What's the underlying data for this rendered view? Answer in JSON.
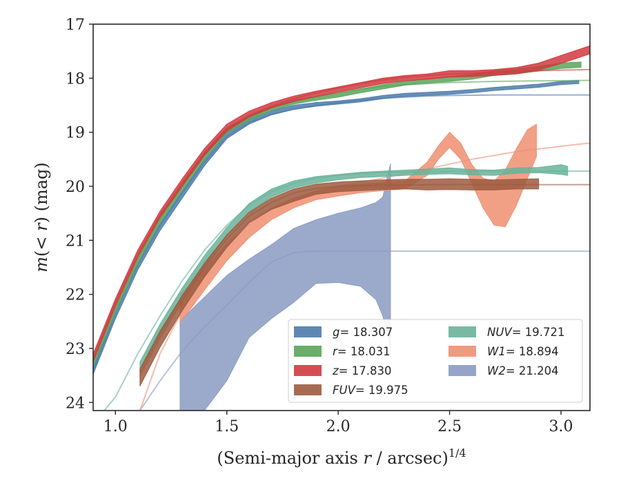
{
  "chart_data": {
    "type": "line",
    "xlabel_main": "(Semi-major axis ",
    "xlabel_var": "r",
    "xlabel_tail": " / arcsec)",
    "xlabel_sup": "1/4",
    "ylabel_pre": "m",
    "ylabel_mid": "(< ",
    "ylabel_var": "r",
    "ylabel_post": ") (mag)",
    "xlim": [
      0.9,
      3.13
    ],
    "ylim": [
      24.15,
      17.0
    ],
    "y_inverted": true,
    "xticks": [
      1.0,
      1.5,
      2.0,
      2.5,
      3.0
    ],
    "xtick_labels": [
      "1.0",
      "1.5",
      "2.0",
      "2.5",
      "3.0"
    ],
    "yticks": [
      17,
      18,
      19,
      20,
      21,
      22,
      23,
      24
    ],
    "ytick_labels": [
      "17",
      "18",
      "19",
      "20",
      "21",
      "22",
      "23",
      "24"
    ],
    "legend_position": "lower-right",
    "series": [
      {
        "band": "g",
        "label": "= 18.307",
        "color": "#4c7bab",
        "band_x": [
          0.9,
          1.0,
          1.1,
          1.2,
          1.3,
          1.4,
          1.5,
          1.6,
          1.7,
          1.8,
          1.9,
          2.0,
          2.1,
          2.2,
          2.3,
          2.4,
          2.5,
          2.6,
          2.7,
          2.8,
          2.9,
          3.0,
          3.08
        ],
        "band_lo": [
          23.48,
          22.45,
          21.55,
          20.82,
          20.22,
          19.62,
          19.12,
          18.85,
          18.68,
          18.58,
          18.52,
          18.48,
          18.44,
          18.38,
          18.34,
          18.32,
          18.3,
          18.27,
          18.23,
          18.2,
          18.17,
          18.12,
          18.1
        ],
        "band_hi": [
          23.36,
          22.33,
          21.43,
          20.7,
          20.1,
          19.5,
          19.0,
          18.75,
          18.6,
          18.5,
          18.45,
          18.42,
          18.38,
          18.32,
          18.28,
          18.26,
          18.24,
          18.21,
          18.17,
          18.14,
          18.11,
          18.06,
          18.04
        ],
        "fit_x": [
          0.9,
          1.0,
          1.1,
          1.2,
          1.3,
          1.4,
          1.5,
          1.6,
          1.7,
          1.8,
          1.9,
          2.0,
          2.1,
          2.2,
          2.3,
          2.4,
          2.5,
          2.7,
          2.9,
          3.13
        ],
        "fit_y": [
          23.42,
          22.35,
          21.45,
          20.72,
          20.12,
          19.55,
          19.08,
          18.82,
          18.67,
          18.57,
          18.5,
          18.45,
          18.41,
          18.37,
          18.35,
          18.33,
          18.32,
          18.31,
          18.31,
          18.31
        ]
      },
      {
        "band": "r",
        "label": "= 18.031",
        "color": "#5aa55a",
        "band_x": [
          0.9,
          1.0,
          1.1,
          1.2,
          1.3,
          1.4,
          1.5,
          1.6,
          1.7,
          1.8,
          1.9,
          2.0,
          2.1,
          2.2,
          2.3,
          2.4,
          2.5,
          2.6,
          2.7,
          2.8,
          2.9,
          3.0,
          3.09
        ],
        "band_lo": [
          23.34,
          22.33,
          21.43,
          20.68,
          20.08,
          19.5,
          19.02,
          18.78,
          18.6,
          18.48,
          18.41,
          18.35,
          18.27,
          18.2,
          18.13,
          18.09,
          18.06,
          18.02,
          17.95,
          17.92,
          17.87,
          17.82,
          17.8
        ],
        "band_hi": [
          23.22,
          22.21,
          21.31,
          20.56,
          19.96,
          19.38,
          18.92,
          18.7,
          18.53,
          18.41,
          18.34,
          18.28,
          18.2,
          18.12,
          18.06,
          18.01,
          17.97,
          17.93,
          17.86,
          17.83,
          17.78,
          17.72,
          17.7
        ],
        "fit_x": [
          0.9,
          1.0,
          1.1,
          1.2,
          1.3,
          1.4,
          1.5,
          1.6,
          1.7,
          1.8,
          1.9,
          2.0,
          2.1,
          2.2,
          2.3,
          2.4,
          2.5,
          2.7,
          2.9,
          3.13
        ],
        "fit_y": [
          23.28,
          22.27,
          21.37,
          20.62,
          20.02,
          19.44,
          18.97,
          18.73,
          18.56,
          18.44,
          18.35,
          18.27,
          18.2,
          18.15,
          18.12,
          18.1,
          18.08,
          18.06,
          18.05,
          18.04
        ]
      },
      {
        "band": "z",
        "label": "= 17.830",
        "color": "#d03a3f",
        "band_x": [
          0.9,
          1.0,
          1.1,
          1.2,
          1.3,
          1.4,
          1.5,
          1.6,
          1.7,
          1.8,
          1.9,
          2.0,
          2.1,
          2.2,
          2.3,
          2.4,
          2.5,
          2.6,
          2.7,
          2.8,
          2.9,
          3.0,
          3.13
        ],
        "band_lo": [
          23.25,
          22.22,
          21.32,
          20.58,
          20.0,
          19.43,
          18.98,
          18.72,
          18.55,
          18.43,
          18.34,
          18.26,
          18.18,
          18.1,
          18.05,
          18.02,
          17.98,
          17.97,
          17.95,
          17.92,
          17.85,
          17.73,
          17.55
        ],
        "band_hi": [
          23.1,
          22.08,
          21.18,
          20.46,
          19.86,
          19.3,
          18.85,
          18.61,
          18.45,
          18.33,
          18.24,
          18.16,
          18.08,
          18.0,
          17.95,
          17.92,
          17.86,
          17.86,
          17.84,
          17.8,
          17.72,
          17.58,
          17.4
        ],
        "fit_x": [
          0.9,
          1.0,
          1.1,
          1.2,
          1.3,
          1.4,
          1.5,
          1.6,
          1.7,
          1.8,
          1.9,
          2.0,
          2.1,
          2.2,
          2.3,
          2.4,
          2.5,
          2.7,
          2.9,
          3.13
        ],
        "fit_y": [
          23.18,
          22.15,
          21.26,
          20.53,
          19.94,
          19.38,
          18.93,
          18.69,
          18.52,
          18.38,
          18.27,
          18.18,
          18.1,
          18.03,
          17.98,
          17.95,
          17.92,
          17.89,
          17.86,
          17.84
        ]
      },
      {
        "band": "FUV",
        "label": "= 19.975",
        "color": "#9c5b3f",
        "band_x": [
          1.11,
          1.2,
          1.3,
          1.4,
          1.5,
          1.6,
          1.7,
          1.8,
          1.9,
          2.0,
          2.1,
          2.2,
          2.3,
          2.4,
          2.5,
          2.6,
          2.7,
          2.8,
          2.9
        ],
        "band_lo": [
          23.7,
          22.98,
          22.3,
          21.68,
          21.13,
          20.68,
          20.43,
          20.28,
          20.15,
          20.1,
          20.08,
          20.06,
          20.05,
          20.07,
          20.06,
          20.07,
          20.07,
          20.05,
          20.05
        ],
        "band_hi": [
          23.38,
          22.68,
          22.02,
          21.42,
          20.9,
          20.48,
          20.22,
          20.05,
          19.96,
          19.92,
          19.9,
          19.88,
          19.87,
          19.87,
          19.86,
          19.87,
          19.88,
          19.87,
          19.86
        ],
        "fit_x": [
          1.11,
          1.2,
          1.3,
          1.4,
          1.5,
          1.6,
          1.7,
          1.8,
          1.9,
          2.0,
          2.2,
          2.4,
          2.6,
          2.8,
          3.13
        ],
        "fit_y": [
          23.5,
          22.8,
          22.12,
          21.5,
          20.98,
          20.55,
          20.3,
          20.12,
          20.04,
          20.0,
          19.98,
          19.97,
          19.97,
          19.97,
          19.97
        ]
      },
      {
        "band": "NUV",
        "label": "= 19.721",
        "color": "#69b39a",
        "band_x": [
          1.11,
          1.2,
          1.3,
          1.4,
          1.5,
          1.6,
          1.7,
          1.8,
          1.9,
          2.0,
          2.1,
          2.2,
          2.3,
          2.4,
          2.5,
          2.6,
          2.7,
          2.8,
          2.9,
          3.0,
          3.03
        ],
        "band_lo": [
          23.45,
          22.75,
          22.08,
          21.48,
          20.92,
          20.48,
          20.2,
          20.03,
          19.94,
          19.88,
          19.84,
          19.82,
          19.8,
          19.78,
          19.77,
          19.79,
          19.8,
          19.76,
          19.75,
          19.78,
          19.8
        ],
        "band_hi": [
          23.25,
          22.55,
          21.88,
          21.28,
          20.76,
          20.32,
          20.05,
          19.9,
          19.82,
          19.78,
          19.74,
          19.72,
          19.7,
          19.68,
          19.66,
          19.69,
          19.7,
          19.66,
          19.65,
          19.6,
          19.63
        ],
        "fit_x": [
          0.95,
          1.0,
          1.1,
          1.2,
          1.3,
          1.4,
          1.5,
          1.6,
          1.7,
          1.8,
          1.9,
          2.0,
          2.1,
          2.2,
          2.4,
          2.6,
          2.8,
          3.13
        ],
        "fit_y": [
          24.15,
          23.9,
          23.1,
          22.4,
          21.75,
          21.18,
          20.72,
          20.35,
          20.1,
          19.95,
          19.85,
          19.8,
          19.76,
          19.74,
          19.73,
          19.72,
          19.72,
          19.72
        ]
      },
      {
        "band": "W1",
        "label": "= 18.894",
        "color": "#ee8f71",
        "band_x": [
          1.29,
          1.35,
          1.4,
          1.5,
          1.6,
          1.7,
          1.8,
          1.9,
          2.0,
          2.1,
          2.2,
          2.3,
          2.4,
          2.45,
          2.5,
          2.55,
          2.6,
          2.65,
          2.7,
          2.75,
          2.8,
          2.85,
          2.89
        ],
        "band_lo": [
          22.52,
          22.2,
          21.92,
          21.38,
          20.95,
          20.62,
          20.4,
          20.25,
          20.18,
          20.12,
          20.08,
          20.05,
          19.8,
          19.5,
          19.28,
          19.5,
          19.95,
          20.4,
          20.72,
          20.75,
          20.35,
          19.85,
          19.45
        ],
        "band_hi": [
          22.0,
          21.75,
          21.52,
          21.08,
          20.7,
          20.42,
          20.22,
          20.08,
          20.0,
          19.96,
          19.93,
          19.9,
          19.55,
          19.25,
          19.0,
          19.2,
          19.6,
          19.85,
          19.9,
          19.7,
          19.3,
          18.95,
          18.85
        ],
        "fit_x": [
          1.11,
          1.2,
          1.3,
          1.4,
          1.5,
          1.6,
          1.7,
          1.8,
          1.9,
          2.0,
          2.2,
          2.4,
          2.6,
          2.8,
          3.0,
          3.13
        ],
        "fit_y": [
          24.15,
          23.1,
          22.3,
          21.62,
          21.05,
          20.65,
          20.4,
          20.22,
          20.1,
          20.0,
          19.85,
          19.68,
          19.5,
          19.36,
          19.26,
          19.2
        ]
      },
      {
        "band": "W2",
        "label": "= 21.204",
        "color": "#8a9bc2",
        "band_x": [
          1.29,
          1.3,
          1.4,
          1.5,
          1.6,
          1.7,
          1.8,
          1.9,
          2.0,
          2.1,
          2.17,
          2.2,
          2.235
        ],
        "band_lo": [
          24.15,
          24.15,
          24.15,
          23.6,
          22.8,
          22.45,
          22.15,
          21.8,
          21.78,
          21.85,
          22.1,
          22.4,
          23.0
        ],
        "band_hi": [
          22.5,
          22.45,
          22.05,
          21.65,
          21.35,
          21.08,
          20.78,
          20.62,
          20.5,
          20.4,
          20.3,
          20.2,
          19.58
        ],
        "fit_x": [
          1.11,
          1.2,
          1.3,
          1.4,
          1.5,
          1.6,
          1.7,
          1.8,
          1.85,
          1.9,
          2.0,
          2.5,
          3.13
        ],
        "fit_y": [
          24.15,
          23.6,
          23.05,
          22.6,
          22.2,
          21.78,
          21.4,
          21.23,
          21.21,
          21.2,
          21.2,
          21.2,
          21.2
        ]
      }
    ],
    "legend_columns": [
      [
        "g",
        "r",
        "z",
        "FUV"
      ],
      [
        "NUV",
        "W1",
        "W2"
      ]
    ]
  }
}
